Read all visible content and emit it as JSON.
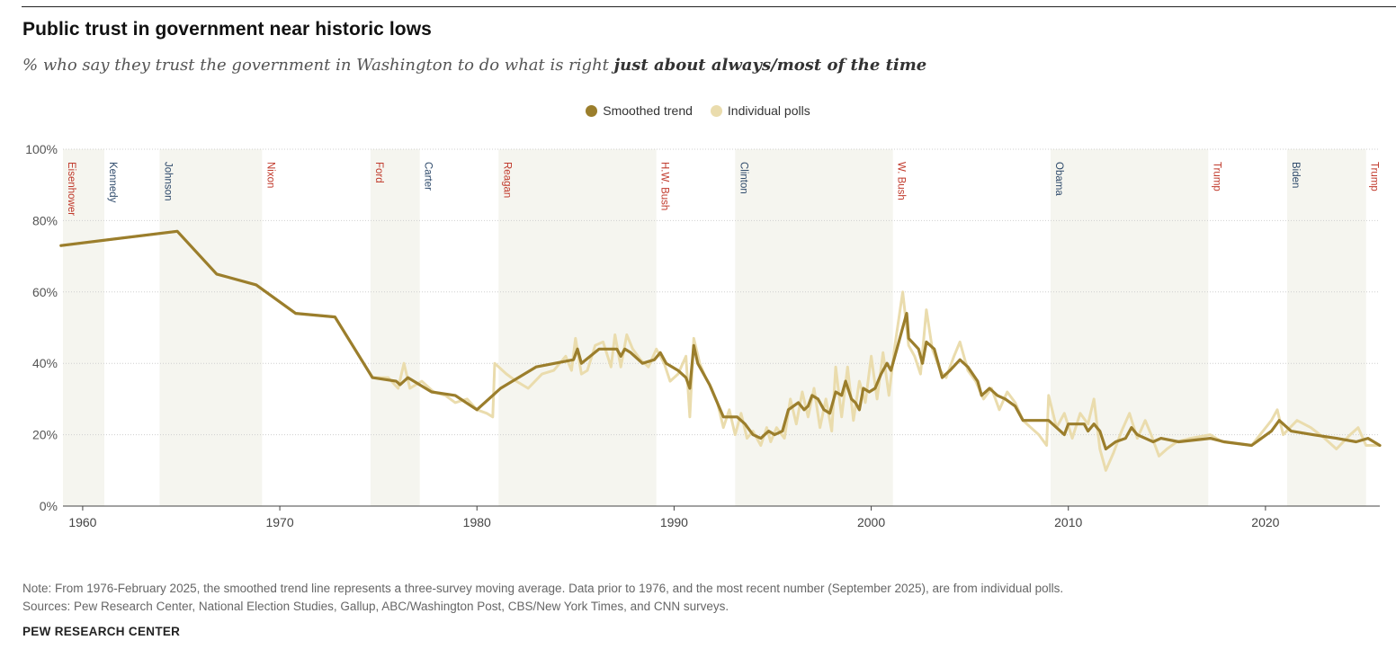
{
  "header": {
    "title": "Public trust in government near historic lows",
    "subtitle_prefix": "% who say they trust the government in Washington to do what is right ",
    "subtitle_bold": "just about always/most of the time"
  },
  "footer": {
    "note": "Note: From 1976-February 2025, the smoothed trend line represents a three-survey moving average. Data prior to 1976, and the most recent number (September 2025), are from individual polls.",
    "sources": "Sources: Pew Research Center, National Election Studies, Gallup, ABC/Washington Post, CBS/New York Times, and CNN surveys.",
    "brand": "PEW RESEARCH CENTER"
  },
  "colors": {
    "smoothed": "#9b7e2c",
    "polls": "#eadcad",
    "band": "#f5f5ef",
    "republican": "#c0392b",
    "democrat": "#2e4a6b"
  },
  "chart_data": {
    "type": "line",
    "xlim": [
      1959,
      2025.8
    ],
    "ylim": [
      0,
      100
    ],
    "y_ticks": [
      0,
      20,
      40,
      60,
      80,
      100
    ],
    "y_tick_labels": [
      "0%",
      "20%",
      "40%",
      "60%",
      "80%",
      "100%"
    ],
    "x_ticks": [
      1960,
      1970,
      1980,
      1990,
      2000,
      2010,
      2020
    ],
    "x_tick_labels": [
      "1960",
      "1970",
      "1980",
      "1990",
      "2000",
      "2010",
      "2020"
    ],
    "grid": "horizontal dotted",
    "legend": "top-center",
    "legend_labels": [
      "Smoothed trend",
      "Individual polls"
    ],
    "presidents": [
      {
        "name": "Eisenhower",
        "start": 1959.0,
        "end": 1961.1,
        "party": "R",
        "shaded": true
      },
      {
        "name": "Kennedy",
        "start": 1961.1,
        "end": 1963.9,
        "party": "D",
        "shaded": false
      },
      {
        "name": "Johnson",
        "start": 1963.9,
        "end": 1969.1,
        "party": "D",
        "shaded": true
      },
      {
        "name": "Nixon",
        "start": 1969.1,
        "end": 1974.6,
        "party": "R",
        "shaded": false
      },
      {
        "name": "Ford",
        "start": 1974.6,
        "end": 1977.1,
        "party": "R",
        "shaded": true
      },
      {
        "name": "Carter",
        "start": 1977.1,
        "end": 1981.1,
        "party": "D",
        "shaded": false
      },
      {
        "name": "Reagan",
        "start": 1981.1,
        "end": 1989.1,
        "party": "R",
        "shaded": true
      },
      {
        "name": "H.W. Bush",
        "start": 1989.1,
        "end": 1993.1,
        "party": "R",
        "shaded": false
      },
      {
        "name": "Clinton",
        "start": 1993.1,
        "end": 2001.1,
        "party": "D",
        "shaded": true
      },
      {
        "name": "W. Bush",
        "start": 2001.1,
        "end": 2009.1,
        "party": "R",
        "shaded": false
      },
      {
        "name": "Obama",
        "start": 2009.1,
        "end": 2017.1,
        "party": "D",
        "shaded": true
      },
      {
        "name": "Trump",
        "start": 2017.1,
        "end": 2021.1,
        "party": "R",
        "shaded": false
      },
      {
        "name": "Biden",
        "start": 2021.1,
        "end": 2025.1,
        "party": "D",
        "shaded": true
      },
      {
        "name": "Trump",
        "start": 2025.1,
        "end": 2025.8,
        "party": "R",
        "shaded": false
      }
    ],
    "series": [
      {
        "name": "Individual polls",
        "points": [
          [
            1958.9,
            73
          ],
          [
            1964.8,
            77
          ],
          [
            1966.8,
            65
          ],
          [
            1968.8,
            62
          ],
          [
            1970.8,
            54
          ],
          [
            1972.8,
            53
          ],
          [
            1974.7,
            36
          ],
          [
            1975.5,
            36
          ],
          [
            1976.0,
            33
          ],
          [
            1976.3,
            40
          ],
          [
            1976.6,
            33
          ],
          [
            1977.2,
            35
          ],
          [
            1977.8,
            32
          ],
          [
            1978.4,
            31
          ],
          [
            1978.9,
            29
          ],
          [
            1979.5,
            30
          ],
          [
            1980.0,
            27
          ],
          [
            1980.5,
            26
          ],
          [
            1980.8,
            25
          ],
          [
            1980.9,
            40
          ],
          [
            1981.5,
            37
          ],
          [
            1982.0,
            35
          ],
          [
            1982.6,
            33
          ],
          [
            1983.3,
            37
          ],
          [
            1983.9,
            38
          ],
          [
            1984.5,
            42
          ],
          [
            1984.8,
            38
          ],
          [
            1985.0,
            47
          ],
          [
            1985.3,
            37
          ],
          [
            1985.6,
            38
          ],
          [
            1986.0,
            45
          ],
          [
            1986.4,
            46
          ],
          [
            1986.8,
            39
          ],
          [
            1987.0,
            48
          ],
          [
            1987.3,
            39
          ],
          [
            1987.6,
            48
          ],
          [
            1987.9,
            44
          ],
          [
            1988.3,
            41
          ],
          [
            1988.7,
            39
          ],
          [
            1989.1,
            44
          ],
          [
            1989.5,
            40
          ],
          [
            1989.8,
            35
          ],
          [
            1990.2,
            37
          ],
          [
            1990.6,
            42
          ],
          [
            1990.8,
            25
          ],
          [
            1991.0,
            47
          ],
          [
            1991.3,
            40
          ],
          [
            1991.6,
            36
          ],
          [
            1991.9,
            33
          ],
          [
            1992.2,
            29
          ],
          [
            1992.5,
            22
          ],
          [
            1992.8,
            27
          ],
          [
            1993.1,
            20
          ],
          [
            1993.4,
            26
          ],
          [
            1993.7,
            19
          ],
          [
            1994.0,
            21
          ],
          [
            1994.4,
            17
          ],
          [
            1994.7,
            22
          ],
          [
            1994.9,
            18
          ],
          [
            1995.2,
            22
          ],
          [
            1995.6,
            19
          ],
          [
            1995.9,
            30
          ],
          [
            1996.2,
            23
          ],
          [
            1996.5,
            32
          ],
          [
            1996.8,
            25
          ],
          [
            1997.1,
            33
          ],
          [
            1997.4,
            22
          ],
          [
            1997.7,
            30
          ],
          [
            1998.0,
            21
          ],
          [
            1998.2,
            39
          ],
          [
            1998.5,
            25
          ],
          [
            1998.8,
            39
          ],
          [
            1999.1,
            24
          ],
          [
            1999.4,
            35
          ],
          [
            1999.7,
            29
          ],
          [
            2000.0,
            42
          ],
          [
            2000.3,
            30
          ],
          [
            2000.6,
            43
          ],
          [
            2000.9,
            31
          ],
          [
            2001.2,
            45
          ],
          [
            2001.6,
            60
          ],
          [
            2001.9,
            45
          ],
          [
            2002.2,
            42
          ],
          [
            2002.5,
            37
          ],
          [
            2002.8,
            55
          ],
          [
            2003.1,
            44
          ],
          [
            2003.5,
            38
          ],
          [
            2003.8,
            36
          ],
          [
            2004.2,
            42
          ],
          [
            2004.5,
            46
          ],
          [
            2004.9,
            38
          ],
          [
            2005.3,
            35
          ],
          [
            2005.7,
            30
          ],
          [
            2006.1,
            33
          ],
          [
            2006.5,
            27
          ],
          [
            2006.9,
            32
          ],
          [
            2007.3,
            29
          ],
          [
            2007.7,
            24
          ],
          [
            2008.1,
            22
          ],
          [
            2008.5,
            20
          ],
          [
            2008.9,
            17
          ],
          [
            2009.0,
            31
          ],
          [
            2009.4,
            22
          ],
          [
            2009.8,
            26
          ],
          [
            2010.2,
            19
          ],
          [
            2010.6,
            26
          ],
          [
            2011.0,
            23
          ],
          [
            2011.3,
            30
          ],
          [
            2011.6,
            16
          ],
          [
            2011.9,
            10
          ],
          [
            2012.3,
            15
          ],
          [
            2012.7,
            21
          ],
          [
            2013.1,
            26
          ],
          [
            2013.5,
            19
          ],
          [
            2013.9,
            24
          ],
          [
            2014.2,
            20
          ],
          [
            2014.6,
            14
          ],
          [
            2015.0,
            16
          ],
          [
            2015.5,
            18
          ],
          [
            2016.2,
            19
          ],
          [
            2017.2,
            20
          ],
          [
            2017.8,
            18
          ],
          [
            2019.3,
            17
          ],
          [
            2020.3,
            24
          ],
          [
            2020.6,
            27
          ],
          [
            2020.9,
            20
          ],
          [
            2021.6,
            24
          ],
          [
            2022.3,
            22
          ],
          [
            2023.0,
            19
          ],
          [
            2023.6,
            16
          ],
          [
            2024.3,
            20
          ],
          [
            2024.7,
            22
          ],
          [
            2025.1,
            17
          ],
          [
            2025.5,
            17
          ],
          [
            2025.8,
            17
          ]
        ]
      },
      {
        "name": "Smoothed trend",
        "points": [
          [
            1958.9,
            73
          ],
          [
            1964.8,
            77
          ],
          [
            1966.8,
            65
          ],
          [
            1968.8,
            62
          ],
          [
            1970.8,
            54
          ],
          [
            1972.8,
            53
          ],
          [
            1974.7,
            36
          ],
          [
            1975.9,
            35
          ],
          [
            1976.1,
            34
          ],
          [
            1976.5,
            36
          ],
          [
            1977.7,
            32
          ],
          [
            1978.9,
            31
          ],
          [
            1980.0,
            27
          ],
          [
            1980.8,
            31
          ],
          [
            1981.2,
            33
          ],
          [
            1983.0,
            39
          ],
          [
            1984.9,
            41
          ],
          [
            1985.1,
            44
          ],
          [
            1985.3,
            40
          ],
          [
            1986.2,
            44
          ],
          [
            1987.1,
            44
          ],
          [
            1987.3,
            42
          ],
          [
            1987.5,
            44
          ],
          [
            1987.8,
            43
          ],
          [
            1988.4,
            40
          ],
          [
            1989.0,
            41
          ],
          [
            1989.3,
            43
          ],
          [
            1989.6,
            40
          ],
          [
            1990.2,
            38
          ],
          [
            1990.6,
            36
          ],
          [
            1990.8,
            33
          ],
          [
            1991.0,
            45
          ],
          [
            1991.2,
            40
          ],
          [
            1991.8,
            34
          ],
          [
            1992.5,
            25
          ],
          [
            1993.2,
            25
          ],
          [
            1993.6,
            23
          ],
          [
            1994.0,
            20
          ],
          [
            1994.4,
            19
          ],
          [
            1994.8,
            21
          ],
          [
            1995.1,
            20
          ],
          [
            1995.5,
            21
          ],
          [
            1995.8,
            27
          ],
          [
            1996.3,
            29
          ],
          [
            1996.6,
            27
          ],
          [
            1996.8,
            28
          ],
          [
            1997.0,
            31
          ],
          [
            1997.3,
            30
          ],
          [
            1997.6,
            27
          ],
          [
            1997.9,
            26
          ],
          [
            1998.2,
            32
          ],
          [
            1998.5,
            31
          ],
          [
            1998.7,
            35
          ],
          [
            1999.0,
            30
          ],
          [
            1999.2,
            29
          ],
          [
            1999.4,
            27
          ],
          [
            1999.6,
            33
          ],
          [
            1999.9,
            32
          ],
          [
            2000.2,
            33
          ],
          [
            2000.5,
            37
          ],
          [
            2000.8,
            40
          ],
          [
            2001.0,
            38
          ],
          [
            2001.3,
            44
          ],
          [
            2001.6,
            50
          ],
          [
            2001.8,
            54
          ],
          [
            2001.9,
            47
          ],
          [
            2002.4,
            44
          ],
          [
            2002.6,
            40
          ],
          [
            2002.8,
            46
          ],
          [
            2003.2,
            44
          ],
          [
            2003.6,
            36
          ],
          [
            2004.0,
            38
          ],
          [
            2004.5,
            41
          ],
          [
            2004.9,
            39
          ],
          [
            2005.4,
            35
          ],
          [
            2005.6,
            31
          ],
          [
            2006.0,
            33
          ],
          [
            2006.4,
            31
          ],
          [
            2006.8,
            30
          ],
          [
            2007.3,
            28
          ],
          [
            2007.7,
            24
          ],
          [
            2008.5,
            24
          ],
          [
            2009.0,
            24
          ],
          [
            2009.4,
            22
          ],
          [
            2009.8,
            20
          ],
          [
            2010.0,
            23
          ],
          [
            2010.5,
            23
          ],
          [
            2010.8,
            23
          ],
          [
            2011.0,
            21
          ],
          [
            2011.3,
            23
          ],
          [
            2011.6,
            21
          ],
          [
            2011.9,
            16
          ],
          [
            2012.4,
            18
          ],
          [
            2012.9,
            19
          ],
          [
            2013.2,
            22
          ],
          [
            2013.5,
            20
          ],
          [
            2013.9,
            19
          ],
          [
            2014.3,
            18
          ],
          [
            2014.7,
            19
          ],
          [
            2015.6,
            18
          ],
          [
            2017.2,
            19
          ],
          [
            2017.9,
            18
          ],
          [
            2019.3,
            17
          ],
          [
            2020.3,
            21
          ],
          [
            2020.7,
            24
          ],
          [
            2021.3,
            21
          ],
          [
            2022.4,
            20
          ],
          [
            2023.6,
            19
          ],
          [
            2024.6,
            18
          ],
          [
            2025.2,
            19
          ],
          [
            2025.8,
            17
          ]
        ]
      }
    ]
  }
}
